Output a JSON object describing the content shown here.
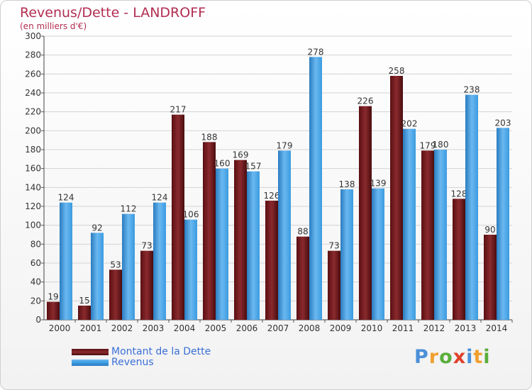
{
  "header": {
    "title": "Revenus/Dette - LANDROFF",
    "subtitle": "(en milliers d'€)"
  },
  "colors": {
    "dette": "#7a1a1e",
    "revenus": "#3b9be0",
    "title": "#b22d52",
    "legend_text": "#3b6fd6"
  },
  "legend": [
    {
      "label": "Montant de la Dette",
      "color": "#7a1a1e"
    },
    {
      "label": "Revenus",
      "color": "#3b9be0"
    }
  ],
  "logo": {
    "text": "Proxiti",
    "letters": [
      {
        "ch": "P",
        "color": "#4a90d9"
      },
      {
        "ch": "r",
        "color": "#f0a030"
      },
      {
        "ch": "o",
        "color": "#5aae3c"
      },
      {
        "ch": "x",
        "color": "#e0402a"
      },
      {
        "ch": "i",
        "color": "#4a90d9"
      },
      {
        "ch": "t",
        "color": "#f0a030"
      },
      {
        "ch": "i",
        "color": "#5aae3c"
      }
    ]
  },
  "chart_data": {
    "type": "bar",
    "title": "Revenus/Dette - LANDROFF",
    "ylabel": "(en milliers d'€)",
    "categories": [
      "2000",
      "2001",
      "2002",
      "2003",
      "2004",
      "2005",
      "2006",
      "2007",
      "2008",
      "2009",
      "2010",
      "2011",
      "2012",
      "2013",
      "2014"
    ],
    "series": [
      {
        "name": "Montant de la Dette",
        "color": "#7a1a1e",
        "values": [
          19,
          15,
          53,
          73,
          217,
          188,
          169,
          126,
          88,
          73,
          226,
          258,
          179,
          128,
          90
        ]
      },
      {
        "name": "Revenus",
        "color": "#3b9be0",
        "values": [
          124,
          92,
          112,
          124,
          106,
          160,
          157,
          179,
          278,
          138,
          139,
          202,
          180,
          238,
          203
        ]
      }
    ],
    "ylim": [
      0,
      300
    ],
    "yticks": [
      0,
      20,
      40,
      60,
      80,
      100,
      120,
      140,
      160,
      180,
      200,
      220,
      240,
      260,
      280,
      300
    ],
    "grid": true,
    "legend_position": "bottom-left"
  }
}
